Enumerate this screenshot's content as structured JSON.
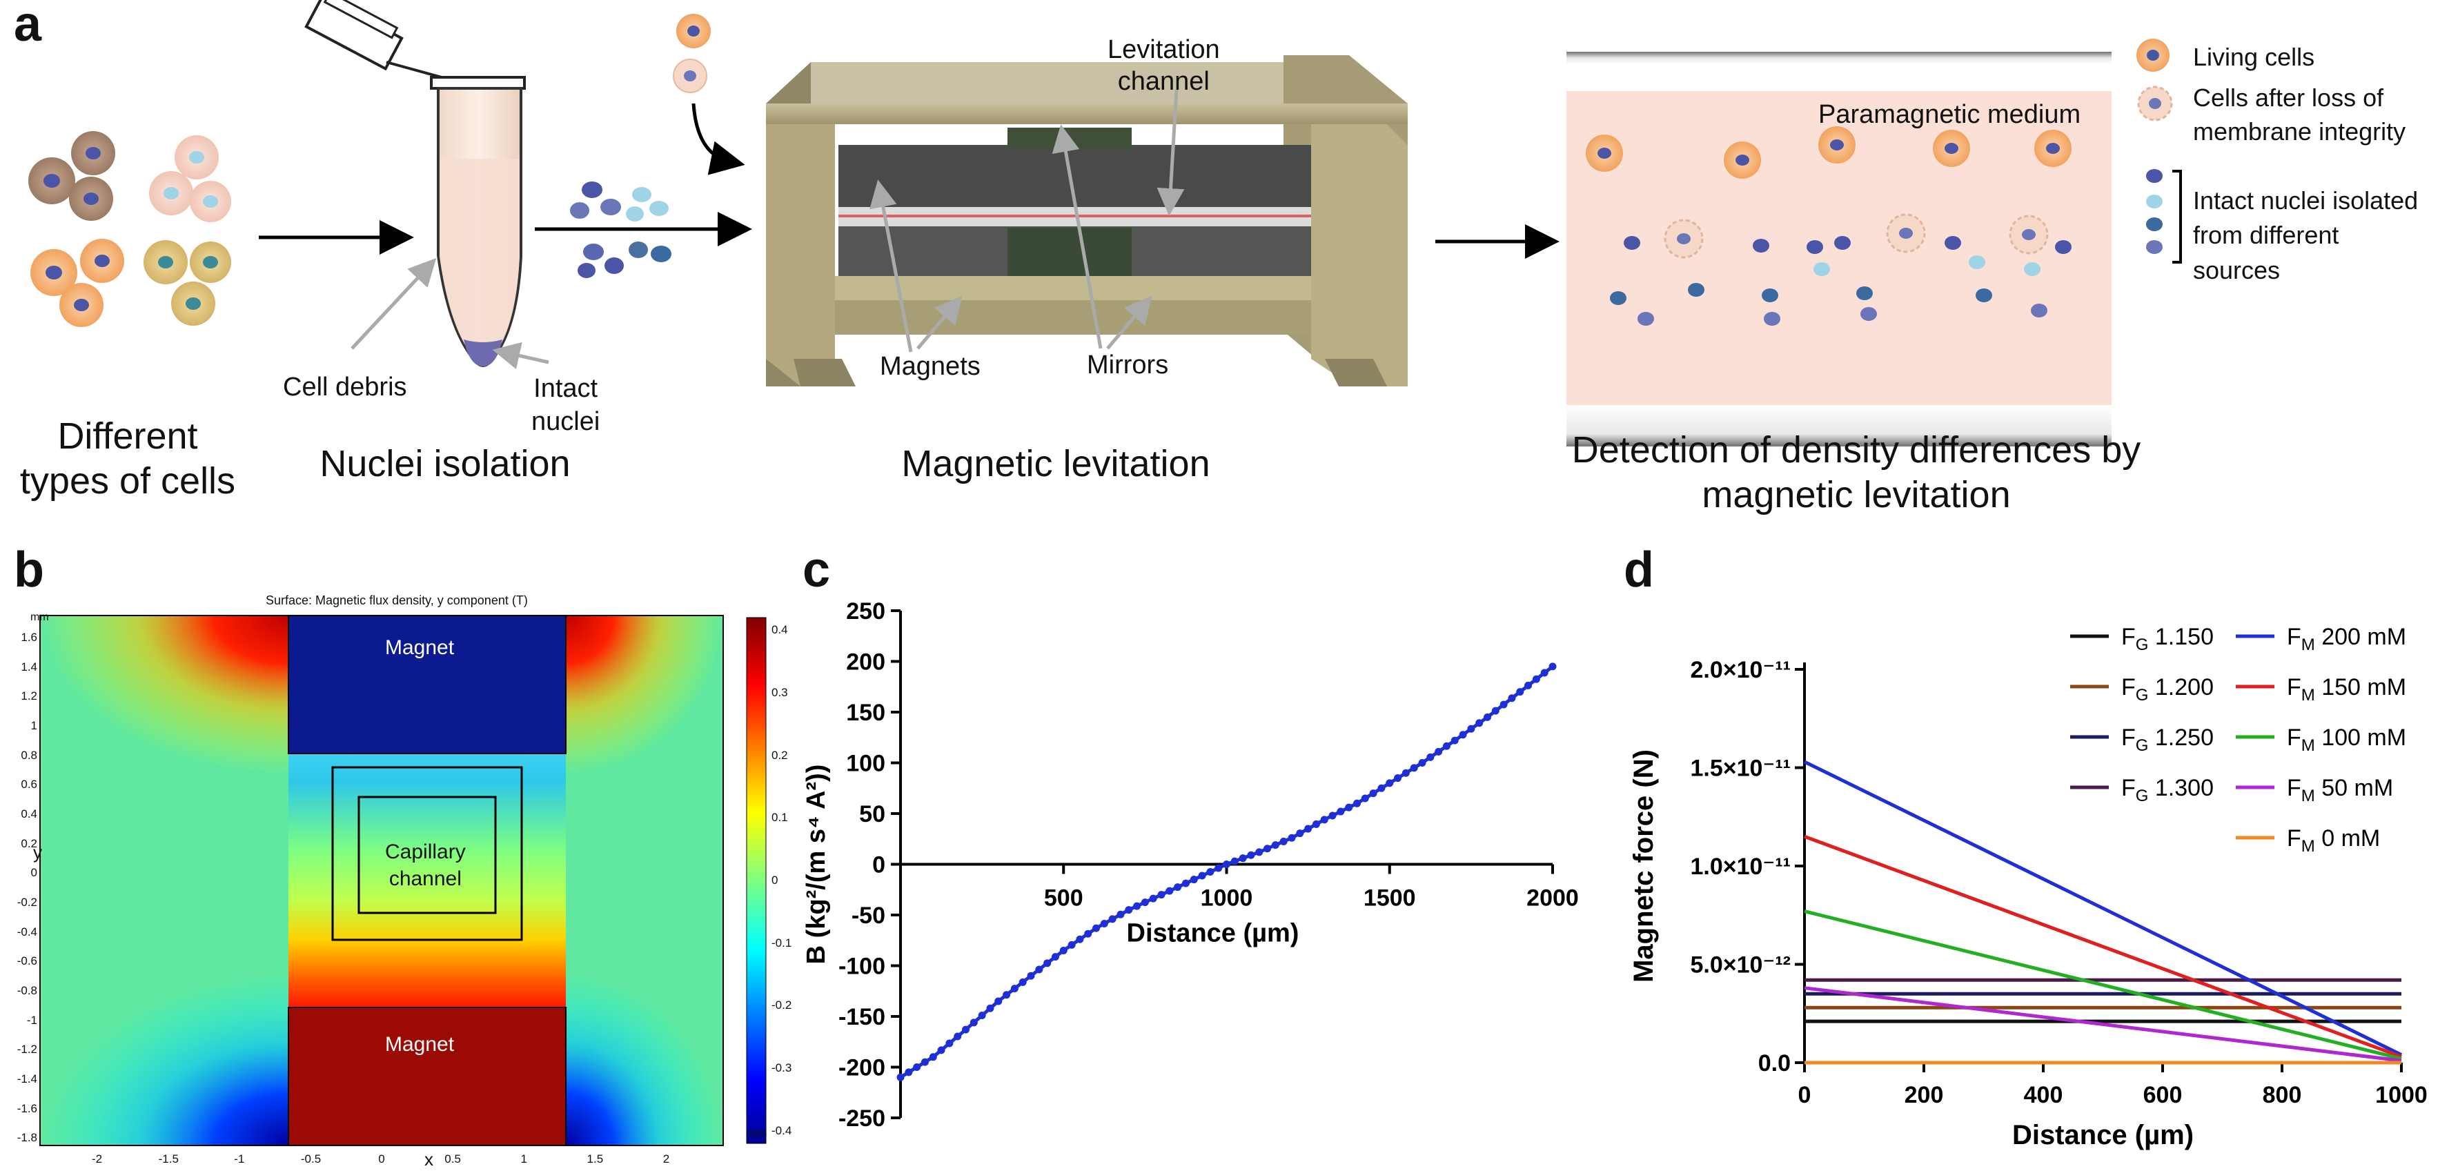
{
  "panel_a": {
    "letter": "a",
    "steps": {
      "cells": "Different types of cells",
      "cells_line1": "Different",
      "cells_line2": "types of cells",
      "nuclei": "Nuclei isolation",
      "levitation": "Magnetic levitation",
      "detection_line1": "Detection of density differences by",
      "detection_line2": "magnetic levitation"
    },
    "tube_labels": {
      "debris": "Cell debris",
      "intact_line1": "Intact",
      "intact_line2": "nuclei"
    },
    "device_labels": {
      "channel_line1": "Levitation",
      "channel_line2": "channel",
      "magnets": "Magnets",
      "mirrors": "Mirrors"
    },
    "medium_label": "Paramagnetic medium",
    "legend": {
      "living": "Living cells",
      "lost_line1": "Cells after loss of",
      "lost_line2": "membrane integrity",
      "nuclei_line1": "Intact nuclei isolated",
      "nuclei_line2": "from different",
      "nuclei_line3": "sources"
    },
    "colors": {
      "living_cell": "#f4a460",
      "nucleus_dark": "#4a55a8",
      "nucleus_light": "#9fd3e6",
      "medium": "#fbe0d8"
    }
  },
  "panel_b": {
    "letter": "b",
    "title": "Surface: Magnetic flux density, y component (T)",
    "unit_y": "mm",
    "unit_x": "mm",
    "xlabel": "x",
    "ylabel": "y",
    "magnet_top": "Magnet",
    "magnet_bottom": "Magnet",
    "channel_line1": "Capillary",
    "channel_line2": "channel",
    "xticks": [
      "-2",
      "-1.5",
      "-1",
      "-0.5",
      "0",
      "0.5",
      "1",
      "1.5",
      "2"
    ],
    "yticks": [
      "1.6",
      "1.4",
      "1.2",
      "1",
      "0.8",
      "0.6",
      "0.4",
      "0.2",
      "0",
      "-0.2",
      "-0.4",
      "-0.6",
      "-0.8",
      "-1",
      "-1.2",
      "-1.4",
      "-1.6",
      "-1.8"
    ],
    "colorbar_ticks": [
      "0.4",
      "0.3",
      "0.2",
      "0.1",
      "0",
      "-0.1",
      "-0.2",
      "-0.3",
      "-0.4"
    ]
  },
  "chart_data": [
    {
      "type": "line",
      "panel": "c",
      "xlabel": "Distance (µm)",
      "ylabel": "B (kg²/(m s⁴ A²))",
      "xlim": [
        0,
        2000
      ],
      "ylim": [
        -250,
        250
      ],
      "xticks": [
        "500",
        "1000",
        "1500",
        "2000"
      ],
      "yticks": [
        "250",
        "200",
        "150",
        "100",
        "50",
        "0",
        "-50",
        "-100",
        "-150",
        "-200",
        "-250"
      ],
      "series": [
        {
          "color": "#1f2fd6",
          "x": [
            0,
            100,
            200,
            300,
            400,
            500,
            600,
            700,
            800,
            900,
            1000,
            1100,
            1200,
            1300,
            1400,
            1500,
            1600,
            1700,
            1800,
            1900,
            2000
          ],
          "y": [
            -210,
            -190,
            -163,
            -135,
            -110,
            -85,
            -63,
            -45,
            -30,
            -15,
            0,
            12,
            26,
            44,
            60,
            80,
            100,
            122,
            145,
            170,
            195
          ]
        }
      ]
    },
    {
      "type": "line",
      "panel": "d",
      "xlabel": "Distance (µm)",
      "ylabel": "Magnetc force (N)",
      "xlim": [
        0,
        1000
      ],
      "ylim": [
        0,
        2e-11
      ],
      "xticks": [
        "0",
        "200",
        "400",
        "600",
        "800",
        "1000"
      ],
      "yticks": [
        "2.0×10⁻¹¹",
        "1.5×10⁻¹¹",
        "1.0×10⁻¹¹",
        "5.0×10⁻¹²",
        "0.0"
      ],
      "legend_placement": "top-right",
      "series": [
        {
          "name": "F_G 1.150",
          "label_main": "F",
          "label_sub": "G",
          "label_rest": " 1.150",
          "color": "#111111",
          "x": [
            0,
            1000
          ],
          "y": [
            2.1e-12,
            2.1e-12
          ]
        },
        {
          "name": "F_G 1.200",
          "label_main": "F",
          "label_sub": "G",
          "label_rest": " 1.200",
          "color": "#8b4513",
          "x": [
            0,
            1000
          ],
          "y": [
            2.8e-12,
            2.8e-12
          ]
        },
        {
          "name": "F_G 1.250",
          "label_main": "F",
          "label_sub": "G",
          "label_rest": " 1.250",
          "color": "#1a1a5e",
          "x": [
            0,
            1000
          ],
          "y": [
            3.5e-12,
            3.5e-12
          ]
        },
        {
          "name": "F_G 1.300",
          "label_main": "F",
          "label_sub": "G",
          "label_rest": " 1.300",
          "color": "#4b1a4b",
          "x": [
            0,
            1000
          ],
          "y": [
            4.2e-12,
            4.2e-12
          ]
        },
        {
          "name": "F_M 200 mM",
          "label_main": "F",
          "label_sub": "M",
          "label_rest": " 200 mM",
          "color": "#1f2fd6",
          "x": [
            0,
            1000
          ],
          "y": [
            1.53e-11,
            4e-13
          ]
        },
        {
          "name": "F_M 150 mM",
          "label_main": "F",
          "label_sub": "M",
          "label_rest": " 150 mM",
          "color": "#e02020",
          "x": [
            0,
            1000
          ],
          "y": [
            1.15e-11,
            3e-13
          ]
        },
        {
          "name": "F_M 100 mM",
          "label_main": "F",
          "label_sub": "M",
          "label_rest": " 100 mM",
          "color": "#22b022",
          "x": [
            0,
            1000
          ],
          "y": [
            7.7e-12,
            2e-13
          ]
        },
        {
          "name": "F_M 50 mM",
          "label_main": "F",
          "label_sub": "M",
          "label_rest": " 50 mM",
          "color": "#b026d0",
          "x": [
            0,
            1000
          ],
          "y": [
            3.8e-12,
            1e-13
          ]
        },
        {
          "name": "F_M 0 mM",
          "label_main": "F",
          "label_sub": "M",
          "label_rest": " 0 mM",
          "color": "#f08a20",
          "x": [
            0,
            1000
          ],
          "y": [
            0,
            0
          ]
        }
      ]
    }
  ]
}
